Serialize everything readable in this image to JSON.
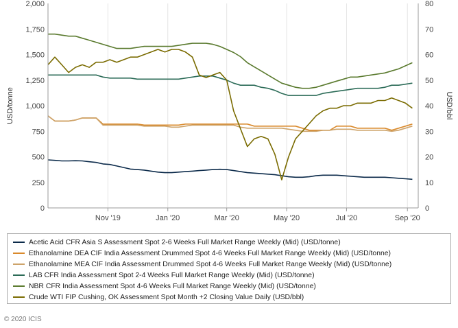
{
  "chart_data": {
    "type": "line",
    "x_dates": [
      "2019-09-01",
      "2019-09-08",
      "2019-09-15",
      "2019-09-22",
      "2019-09-29",
      "2019-10-06",
      "2019-10-13",
      "2019-10-20",
      "2019-10-27",
      "2019-11-03",
      "2019-11-10",
      "2019-11-17",
      "2019-11-24",
      "2019-12-01",
      "2019-12-08",
      "2019-12-15",
      "2019-12-22",
      "2019-12-29",
      "2020-01-05",
      "2020-01-12",
      "2020-01-19",
      "2020-01-26",
      "2020-02-02",
      "2020-02-09",
      "2020-02-16",
      "2020-02-23",
      "2020-03-01",
      "2020-03-08",
      "2020-03-15",
      "2020-03-22",
      "2020-03-29",
      "2020-04-05",
      "2020-04-12",
      "2020-04-19",
      "2020-04-26",
      "2020-05-03",
      "2020-05-10",
      "2020-05-17",
      "2020-05-24",
      "2020-05-31",
      "2020-06-07",
      "2020-06-14",
      "2020-06-21",
      "2020-06-28",
      "2020-07-05",
      "2020-07-12",
      "2020-07-19",
      "2020-07-26",
      "2020-08-02",
      "2020-08-09",
      "2020-08-16",
      "2020-08-23",
      "2020-08-30",
      "2020-09-06"
    ],
    "x_tick_labels": [
      "Nov '19",
      "Jan '20",
      "Mar '20",
      "May '20",
      "Jul '20",
      "Sep '20"
    ],
    "x_tick_dates": [
      "2019-11-01",
      "2020-01-01",
      "2020-03-01",
      "2020-05-01",
      "2020-07-01",
      "2020-09-01"
    ],
    "left_axis": {
      "label": "USD/tonne",
      "ylim": [
        0,
        2000
      ],
      "ticks": [
        0,
        250,
        500,
        750,
        1000,
        1250,
        1500,
        1750,
        2000
      ],
      "tick_labels": [
        "0",
        "250",
        "500",
        "750",
        "1,000",
        "1,250",
        "1,500",
        "1,750",
        "2,000"
      ]
    },
    "right_axis": {
      "label": "USD/bbl",
      "ylim": [
        0,
        80
      ],
      "ticks": [
        0,
        10,
        20,
        30,
        40,
        50,
        60,
        70,
        80
      ],
      "tick_labels": [
        "0",
        "10",
        "20",
        "30",
        "40",
        "50",
        "60",
        "70",
        "80"
      ]
    },
    "grid": "vertical",
    "legend_position": "bottom",
    "series": [
      {
        "name": "Acetic Acid CFR Asia S Assessment Spot 2-6 Weeks Full Market Range Weekly (Mid) (USD/tonne)",
        "color": "#0b2a4a",
        "axis": "left",
        "values": [
          470,
          465,
          460,
          460,
          462,
          460,
          452,
          445,
          430,
          425,
          410,
          395,
          380,
          375,
          370,
          360,
          350,
          345,
          345,
          350,
          355,
          360,
          365,
          370,
          375,
          378,
          375,
          365,
          355,
          345,
          340,
          335,
          330,
          325,
          315,
          305,
          300,
          300,
          305,
          315,
          320,
          320,
          320,
          315,
          310,
          305,
          300,
          300,
          300,
          300,
          295,
          290,
          285,
          280
        ]
      },
      {
        "name": "Ethanolamine DEA CIF India Assessment Drummed Spot 4-6 Weeks Full Market Range Weekly (Mid) (USD/tonne)",
        "color": "#d9892b",
        "axis": "left",
        "values": [
          900,
          850,
          850,
          850,
          860,
          880,
          880,
          880,
          820,
          820,
          820,
          820,
          820,
          820,
          810,
          810,
          810,
          810,
          810,
          810,
          820,
          820,
          820,
          820,
          820,
          820,
          820,
          820,
          820,
          820,
          800,
          800,
          800,
          800,
          800,
          800,
          800,
          780,
          760,
          760,
          760,
          760,
          800,
          800,
          800,
          780,
          780,
          780,
          780,
          780,
          760,
          780,
          800,
          820
        ]
      },
      {
        "name": "Ethanolamine MEA CIF India Assessment Drummed Spot 4-6 Weeks Full Market Range Weekly (Mid) (USD/tonne)",
        "color": "#cda36a",
        "axis": "left",
        "values": [
          900,
          850,
          850,
          850,
          860,
          880,
          880,
          880,
          810,
          810,
          810,
          810,
          810,
          810,
          800,
          800,
          800,
          800,
          790,
          790,
          800,
          810,
          810,
          810,
          810,
          810,
          810,
          810,
          790,
          780,
          780,
          780,
          780,
          780,
          780,
          770,
          760,
          750,
          750,
          750,
          760,
          760,
          770,
          770,
          770,
          760,
          760,
          760,
          760,
          760,
          750,
          760,
          780,
          800
        ]
      },
      {
        "name": "LAB CFR India Assessment Spot 2-4 Weeks Full Market Range Weekly (Mid) (USD/tonne)",
        "color": "#2b6b57",
        "axis": "left",
        "values": [
          1300,
          1300,
          1300,
          1300,
          1300,
          1300,
          1300,
          1300,
          1280,
          1270,
          1270,
          1270,
          1270,
          1260,
          1260,
          1260,
          1260,
          1260,
          1260,
          1260,
          1270,
          1280,
          1290,
          1290,
          1290,
          1270,
          1250,
          1220,
          1200,
          1200,
          1200,
          1180,
          1170,
          1150,
          1120,
          1100,
          1100,
          1100,
          1100,
          1100,
          1120,
          1130,
          1140,
          1150,
          1160,
          1170,
          1170,
          1170,
          1170,
          1180,
          1200,
          1200,
          1210,
          1220
        ]
      },
      {
        "name": "NBR CFR India Assessment Spot 4-6 Weeks Full Market Range Weekly (Mid) (USD/tonne)",
        "color": "#5a7a2e",
        "axis": "left",
        "values": [
          1700,
          1700,
          1690,
          1680,
          1680,
          1660,
          1640,
          1620,
          1600,
          1580,
          1560,
          1560,
          1560,
          1570,
          1580,
          1580,
          1580,
          1580,
          1580,
          1590,
          1600,
          1610,
          1610,
          1610,
          1600,
          1580,
          1550,
          1520,
          1480,
          1420,
          1380,
          1340,
          1300,
          1260,
          1220,
          1200,
          1180,
          1170,
          1170,
          1180,
          1200,
          1220,
          1240,
          1260,
          1280,
          1280,
          1290,
          1300,
          1310,
          1320,
          1340,
          1360,
          1390,
          1420
        ]
      },
      {
        "name": "Crude WTI FIP Cushing, OK Assessment Spot Month +2 Closing Value Daily (USD/bbl)",
        "color": "#7a6b00",
        "axis": "right",
        "values": [
          56,
          59,
          56,
          53,
          55,
          56,
          55,
          57,
          57,
          58,
          57,
          58,
          59,
          59,
          60,
          61,
          62,
          61,
          62,
          62,
          61,
          59,
          52,
          51,
          52,
          53,
          50,
          38,
          31,
          24,
          27,
          28,
          27,
          21,
          11,
          20,
          27,
          30,
          33,
          36,
          38,
          39,
          39,
          40,
          40,
          41,
          41,
          41,
          42,
          42,
          43,
          42,
          41,
          39
        ]
      }
    ]
  },
  "footer": {
    "copyright": "© 2020 ICIS"
  }
}
